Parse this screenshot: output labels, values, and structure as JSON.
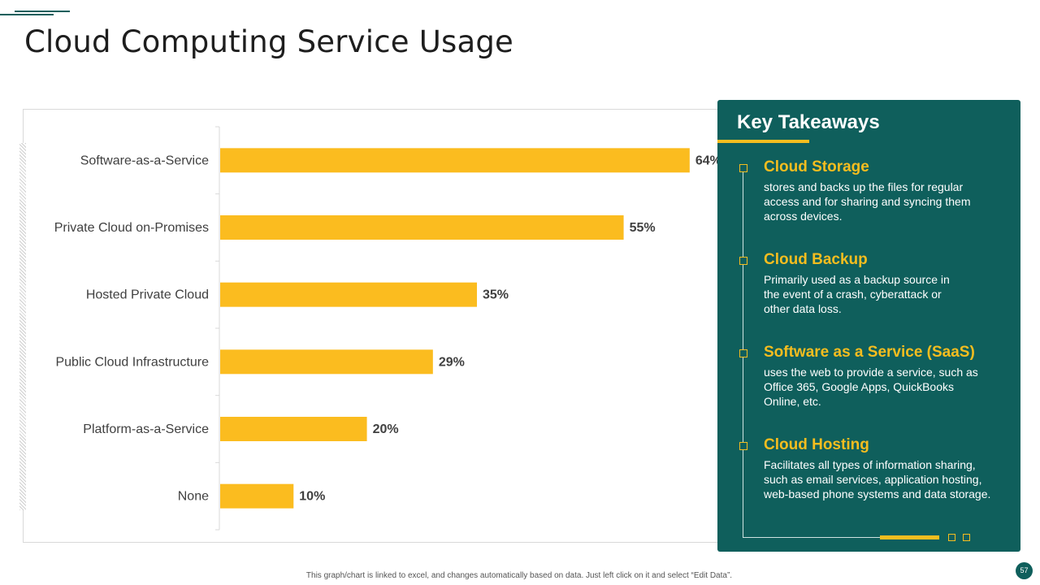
{
  "title": "Cloud Computing Service Usage",
  "colors": {
    "teal": "#0f5f5c",
    "bar": "#fbbc1f",
    "gold": "#f5bd1f"
  },
  "chart_data": {
    "type": "bar",
    "orientation": "horizontal",
    "categories": [
      "Software-as-a-Service",
      "Private Cloud on-Promises",
      "Hosted Private Cloud",
      "Public Cloud Infrastructure",
      "Platform-as-a-Service",
      "None"
    ],
    "values": [
      64,
      55,
      35,
      29,
      20,
      10
    ],
    "value_labels": [
      "64%",
      "55%",
      "35%",
      "29%",
      "20%",
      "10%"
    ],
    "unit": "%",
    "xlim": [
      0,
      70
    ],
    "title": "",
    "xlabel": "",
    "ylabel": "",
    "grid": false,
    "legend": "none"
  },
  "takeaways": {
    "title": "Key Takeaways",
    "items": [
      {
        "heading": "Cloud Storage",
        "body": "stores and backs up the files for regular access and for sharing and syncing them across devices."
      },
      {
        "heading": "Cloud Backup",
        "body": "Primarily used as a backup source in the event of a crash, cyberattack or other data loss."
      },
      {
        "heading": "Software as a Service (SaaS)",
        "body": "uses the web to provide  a service, such as Office 365, Google Apps, QuickBooks Online, etc."
      },
      {
        "heading": "Cloud Hosting",
        "body": "Facilitates all types of information sharing, such as email services, application hosting, web-based phone systems and data storage."
      }
    ]
  },
  "footer": "This graph/chart is linked to excel, and changes automatically based on data. Just left click on it and select “Edit Data”.",
  "page_number": "57"
}
